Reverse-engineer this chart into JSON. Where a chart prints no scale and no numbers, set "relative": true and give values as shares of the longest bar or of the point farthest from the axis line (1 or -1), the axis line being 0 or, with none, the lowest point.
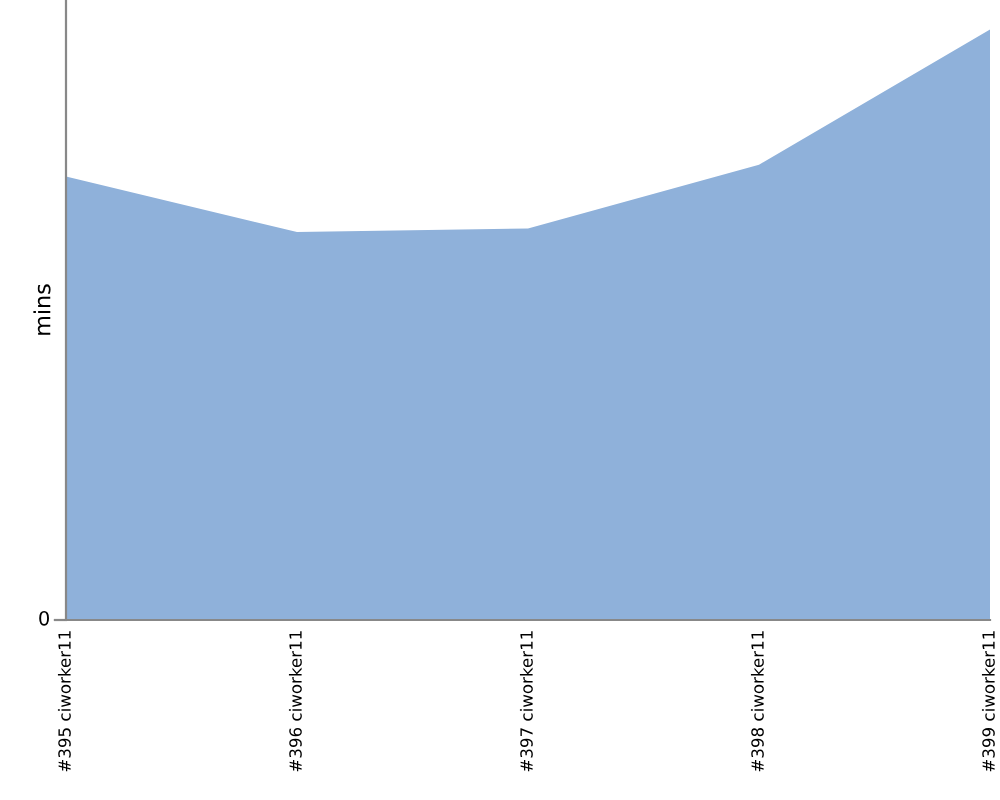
{
  "chart_data": {
    "type": "area",
    "ylabel": "mins",
    "relative": true,
    "annotations": [
      "0"
    ],
    "grid": false,
    "legend": false,
    "categories": [
      "#395 ciworker11",
      "#396 ciworker11",
      "#397 ciworker11",
      "#398 ciworker11",
      "#399 ciworker11"
    ],
    "series": [
      {
        "color": "#8fb1da",
        "values": [
          0.751,
          0.657,
          0.663,
          0.771,
          1
        ]
      }
    ]
  }
}
